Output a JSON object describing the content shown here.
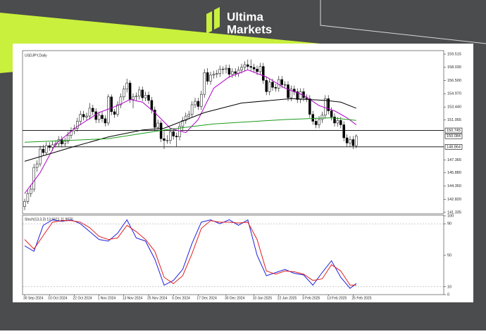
{
  "brand": {
    "name_top": "Ultima",
    "name_bottom": "Markets"
  },
  "chart_data": [
    {
      "type": "candlestick",
      "title": "USDJPY,Daily",
      "categories": [
        "30 Sep 2024",
        null,
        null,
        null,
        null,
        null,
        null,
        null,
        "10 Oct 2024",
        null,
        null,
        null,
        null,
        null,
        null,
        null,
        "22 Oct 2024",
        null,
        null,
        null,
        null,
        null,
        null,
        null,
        "1 Nov 2024",
        null,
        null,
        null,
        null,
        null,
        null,
        null,
        "13 Nov 2024",
        null,
        null,
        null,
        null,
        null,
        null,
        null,
        "25 Nov 2024",
        null,
        null,
        null,
        null,
        null,
        null,
        null,
        "5 Dec 2024",
        null,
        null,
        null,
        null,
        null,
        null,
        null,
        "17 Dec 2024",
        null,
        null,
        null,
        null,
        null,
        null,
        null,
        null,
        "30 Dec 2024",
        null,
        null,
        null,
        null,
        null,
        null,
        null,
        null,
        "10 Jan 2025",
        null,
        null,
        null,
        null,
        null,
        null,
        null,
        "22 Jan 2025",
        null,
        null,
        null,
        null,
        null,
        null,
        null,
        "3 Feb 2025",
        null,
        null,
        null,
        null,
        null,
        null,
        null,
        "13 Feb 2025",
        null,
        null,
        null,
        null,
        null,
        null,
        null,
        "25 Feb 2025",
        null
      ],
      "ohlc": [
        [
          142.0,
          142.9,
          141.6,
          142.6
        ],
        [
          142.6,
          143.9,
          142.3,
          143.5
        ],
        [
          143.5,
          144.4,
          143.1,
          144.0
        ],
        [
          144.0,
          146.9,
          143.7,
          146.5
        ],
        [
          146.5,
          147.3,
          146.0,
          146.9
        ],
        [
          146.9,
          149.0,
          146.6,
          148.6
        ],
        [
          148.6,
          149.1,
          147.8,
          148.2
        ],
        [
          148.2,
          149.4,
          147.9,
          149.0
        ],
        [
          149.0,
          149.4,
          148.4,
          148.8
        ],
        [
          148.8,
          149.5,
          148.4,
          149.1
        ],
        [
          149.1,
          149.6,
          148.8,
          149.2
        ],
        [
          149.2,
          150.1,
          148.9,
          149.7
        ],
        [
          149.7,
          150.1,
          148.8,
          149.2
        ],
        [
          149.2,
          149.9,
          148.9,
          149.5
        ],
        [
          149.5,
          150.6,
          149.2,
          150.2
        ],
        [
          150.2,
          151.1,
          149.8,
          150.7
        ],
        [
          150.7,
          151.4,
          150.3,
          151.0
        ],
        [
          151.0,
          152.2,
          150.6,
          151.8
        ],
        [
          151.8,
          153.0,
          151.4,
          152.6
        ],
        [
          152.6,
          153.0,
          151.9,
          152.3
        ],
        [
          152.3,
          152.8,
          151.9,
          152.4
        ],
        [
          152.4,
          153.9,
          152.0,
          153.3
        ],
        [
          153.3,
          153.7,
          152.5,
          152.9
        ],
        [
          152.9,
          153.3,
          151.6,
          152.0
        ],
        [
          152.0,
          152.9,
          151.6,
          152.5
        ],
        [
          152.5,
          152.9,
          151.7,
          152.1
        ],
        [
          152.1,
          152.5,
          151.2,
          151.6
        ],
        [
          151.6,
          154.9,
          151.3,
          154.6
        ],
        [
          154.6,
          154.9,
          152.5,
          152.9
        ],
        [
          152.9,
          153.2,
          152.2,
          152.6
        ],
        [
          152.6,
          154.1,
          152.3,
          153.7
        ],
        [
          153.7,
          155.0,
          153.3,
          154.6
        ],
        [
          154.6,
          155.9,
          154.2,
          155.5
        ],
        [
          155.5,
          156.7,
          155.1,
          156.2
        ],
        [
          156.2,
          156.5,
          153.9,
          154.3
        ],
        [
          154.3,
          155.0,
          153.3,
          154.6
        ],
        [
          154.6,
          155.1,
          154.2,
          154.7
        ],
        [
          154.7,
          155.8,
          154.3,
          155.4
        ],
        [
          155.4,
          155.8,
          154.1,
          154.5
        ],
        [
          154.5,
          155.2,
          154.1,
          154.8
        ],
        [
          154.8,
          155.2,
          153.8,
          154.2
        ],
        [
          154.2,
          154.6,
          152.7,
          153.1
        ],
        [
          153.1,
          153.5,
          150.7,
          151.1
        ],
        [
          151.1,
          152.0,
          150.8,
          151.6
        ],
        [
          151.6,
          151.9,
          149.4,
          149.8
        ],
        [
          149.8,
          150.7,
          148.6,
          149.6
        ],
        [
          149.6,
          150.2,
          149.2,
          149.6
        ],
        [
          149.6,
          151.0,
          149.2,
          150.6
        ],
        [
          150.6,
          151.0,
          149.7,
          150.1
        ],
        [
          150.1,
          150.5,
          148.9,
          150.0
        ],
        [
          150.0,
          151.6,
          149.6,
          151.2
        ],
        [
          151.2,
          152.3,
          150.8,
          151.9
        ],
        [
          151.9,
          152.8,
          151.5,
          152.4
        ],
        [
          152.4,
          153.0,
          152.0,
          152.6
        ],
        [
          152.6,
          154.1,
          152.2,
          153.7
        ],
        [
          153.7,
          154.5,
          153.3,
          154.1
        ],
        [
          154.1,
          154.5,
          153.1,
          153.5
        ],
        [
          153.5,
          155.3,
          153.1,
          154.9
        ],
        [
          154.9,
          157.8,
          154.5,
          157.4
        ],
        [
          157.4,
          157.9,
          156.0,
          156.4
        ],
        [
          156.4,
          157.5,
          156.0,
          157.1
        ],
        [
          157.1,
          157.6,
          156.7,
          157.2
        ],
        [
          157.2,
          157.7,
          156.8,
          157.3
        ],
        [
          157.3,
          158.2,
          156.9,
          157.8
        ],
        [
          157.8,
          158.1,
          157.2,
          157.8
        ],
        [
          157.8,
          158.3,
          157.3,
          157.9
        ],
        [
          157.9,
          158.3,
          156.8,
          157.2
        ],
        [
          157.2,
          157.9,
          156.8,
          157.5
        ],
        [
          157.5,
          157.9,
          156.9,
          157.3
        ],
        [
          157.3,
          158.1,
          156.9,
          157.7
        ],
        [
          157.7,
          158.4,
          157.3,
          158.0
        ],
        [
          158.0,
          158.7,
          157.6,
          158.3
        ],
        [
          158.3,
          158.9,
          157.7,
          158.1
        ],
        [
          158.1,
          158.9,
          157.6,
          158.0
        ],
        [
          158.0,
          158.4,
          157.4,
          157.8
        ],
        [
          157.8,
          158.2,
          157.1,
          157.5
        ],
        [
          157.5,
          158.5,
          157.1,
          158.1
        ],
        [
          158.1,
          158.5,
          156.1,
          156.5
        ],
        [
          156.5,
          156.9,
          154.8,
          155.2
        ],
        [
          155.2,
          156.7,
          154.8,
          156.3
        ],
        [
          156.3,
          156.7,
          155.3,
          155.7
        ],
        [
          155.7,
          156.1,
          155.2,
          155.6
        ],
        [
          155.6,
          157.0,
          155.2,
          156.6
        ],
        [
          156.6,
          157.0,
          155.6,
          156.0
        ],
        [
          156.0,
          156.4,
          155.6,
          156.0
        ],
        [
          156.0,
          156.4,
          154.1,
          154.5
        ],
        [
          154.5,
          155.9,
          154.1,
          155.5
        ],
        [
          155.5,
          155.9,
          154.8,
          155.2
        ],
        [
          155.2,
          155.6,
          153.9,
          154.3
        ],
        [
          154.3,
          155.6,
          153.9,
          155.2
        ],
        [
          155.2,
          155.6,
          154.1,
          154.5
        ],
        [
          154.5,
          154.9,
          154.0,
          154.4
        ],
        [
          154.4,
          154.8,
          152.2,
          152.6
        ],
        [
          152.6,
          153.0,
          151.4,
          151.8
        ],
        [
          151.8,
          152.2,
          151.0,
          151.4
        ],
        [
          151.4,
          152.4,
          151.0,
          152.0
        ],
        [
          152.0,
          152.9,
          151.6,
          152.5
        ],
        [
          152.5,
          154.8,
          152.1,
          154.4
        ],
        [
          154.4,
          154.8,
          152.6,
          153.0
        ],
        [
          153.0,
          153.4,
          151.9,
          152.3
        ],
        [
          152.3,
          152.7,
          151.2,
          151.6
        ],
        [
          151.6,
          152.3,
          151.2,
          151.9
        ],
        [
          151.9,
          152.3,
          151.0,
          151.4
        ],
        [
          151.4,
          151.8,
          149.5,
          149.9
        ],
        [
          149.9,
          150.3,
          148.9,
          149.3
        ],
        [
          149.3,
          150.1,
          148.9,
          149.7
        ],
        [
          149.7,
          150.1,
          148.6,
          149.0
        ],
        [
          149.0,
          150.3,
          148.7,
          150.084
        ]
      ],
      "series": [
        {
          "type": "line",
          "color": "#b000c8",
          "x": [
            0,
            5,
            10,
            17,
            24,
            30,
            34,
            38,
            42,
            47,
            52,
            56,
            61,
            66,
            72,
            78,
            84,
            90,
            95,
            100,
            104,
            107
          ],
          "values": [
            143.5,
            145.9,
            149.2,
            151.2,
            152.8,
            153.6,
            154.3,
            154.0,
            152.8,
            151.0,
            150.5,
            152.0,
            155.6,
            156.9,
            157.7,
            156.9,
            155.6,
            154.8,
            153.6,
            153.0,
            152.2,
            151.4
          ]
        },
        {
          "type": "line",
          "color": "#000000",
          "x": [
            0,
            15,
            27,
            38,
            45,
            58,
            70,
            86,
            97,
            102,
            107
          ],
          "values": [
            147.2,
            148.8,
            150.0,
            150.8,
            151.0,
            152.8,
            153.9,
            154.4,
            154.2,
            154.0,
            153.3
          ]
        },
        {
          "type": "line",
          "color": "#1a9a1a",
          "x": [
            0,
            27,
            45,
            61,
            84,
            99,
            107
          ],
          "values": [
            149.4,
            149.8,
            150.8,
            151.5,
            152.0,
            152.2,
            151.9
          ]
        }
      ],
      "hlines": [
        150.745,
        148.864
      ],
      "ylim": [
        141.335,
        159.515
      ],
      "yticks": [
        159.515,
        {
          "value": 158.03,
          "label": "158.030"
        },
        {
          "value": 156.5,
          "label": "156.500"
        },
        {
          "value": 154.97,
          "label": "154.970"
        },
        {
          "value": 153.44,
          "label": "153.440"
        },
        151.955,
        147.365,
        {
          "value": 145.88,
          "label": "145.880"
        },
        {
          "value": 144.35,
          "label": "144.350"
        },
        {
          "value": 142.82,
          "label": "142.820"
        },
        141.335
      ]
    },
    {
      "type": "oscillator",
      "title": "Stoch(13,3,3) 13.9421 11.9870",
      "series": [
        {
          "type": "line",
          "color": "#2020e0",
          "x": [
            0,
            3,
            6,
            9,
            12,
            15,
            18,
            21,
            24,
            27,
            30,
            33,
            36,
            39,
            42,
            45,
            48,
            51,
            54,
            57,
            60,
            63,
            66,
            69,
            72,
            75,
            78,
            81,
            84,
            87,
            90,
            93,
            96,
            99,
            102,
            105,
            107
          ],
          "values": [
            62,
            55,
            88,
            95,
            93,
            95,
            90,
            80,
            70,
            68,
            78,
            95,
            72,
            68,
            45,
            12,
            18,
            32,
            65,
            92,
            95,
            90,
            95,
            88,
            95,
            50,
            24,
            28,
            32,
            27,
            25,
            12,
            28,
            43,
            22,
            8,
            14
          ]
        },
        {
          "type": "line",
          "color": "#e02020",
          "x": [
            0,
            3,
            6,
            9,
            12,
            15,
            18,
            21,
            24,
            27,
            30,
            33,
            36,
            39,
            42,
            45,
            48,
            51,
            54,
            57,
            60,
            63,
            66,
            69,
            72,
            75,
            78,
            81,
            84,
            87,
            90,
            93,
            96,
            99,
            102,
            105,
            107
          ],
          "values": [
            70,
            58,
            75,
            92,
            94,
            94,
            92,
            85,
            74,
            70,
            72,
            88,
            80,
            70,
            55,
            22,
            14,
            24,
            52,
            84,
            94,
            92,
            92,
            91,
            92,
            70,
            30,
            26,
            30,
            29,
            26,
            18,
            20,
            38,
            30,
            12,
            12
          ]
        }
      ],
      "ylim": [
        0,
        100
      ],
      "yticks": [
        100,
        90,
        50,
        10,
        0
      ],
      "dashed_levels": [
        90,
        10
      ]
    }
  ]
}
